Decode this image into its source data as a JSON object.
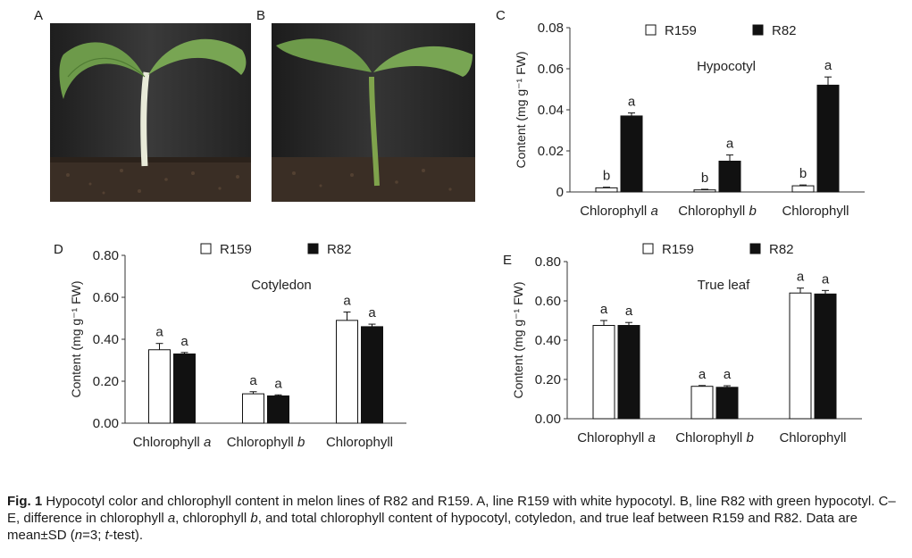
{
  "panels": {
    "a": "A",
    "b": "B",
    "c": "C",
    "d": "D",
    "e": "E"
  },
  "caption": {
    "fig_label": "Fig. 1",
    "text_1": "  Hypocotyl color and chlorophyll content in melon lines of R82 and R159.  A, line R159 with white hypocotyl.  B, line R82 with green hypocotyl.  C–E, difference in chlorophyll ",
    "italic_a": "a",
    "text_2": ", chlorophyll ",
    "italic_b": "b",
    "text_3": ", and total chlorophyll content of hypocotyl, cotyledon, and true leaf between R159 and R82.  Data are mean±SD  (",
    "italic_n": "n",
    "text_4": "=3; ",
    "italic_t": "t",
    "text_5": "-test)."
  },
  "colors": {
    "r159_fill": "#ffffff",
    "r82_fill": "#111111",
    "axis": "#333333",
    "photo_bg": "#2a2a2a",
    "leaf": "#6d9a4a",
    "stem_white": "#e8ead8",
    "stem_green": "#7fa34c",
    "soil": "#3a2e25"
  },
  "chart_data": [
    {
      "panel": "C",
      "type": "bar",
      "inner_label": "Hypocotyl",
      "ylabel": "Content (mg g⁻¹ FW)",
      "categories": [
        "Chlorophyll a",
        "Chlorophyll b",
        "Chlorophyll"
      ],
      "category_parts": [
        [
          "Chlorophyll ",
          "a"
        ],
        [
          "Chlorophyll ",
          "b"
        ],
        [
          "Chlorophyll",
          ""
        ]
      ],
      "ylim": [
        0,
        0.08
      ],
      "yticks": [
        0,
        0.02,
        0.04,
        0.06,
        0.08
      ],
      "ytick_labels": [
        "0",
        "0.02",
        "0.04",
        "0.06",
        "0.08"
      ],
      "legend": "top",
      "series": [
        {
          "name": "R159",
          "values": [
            0.002,
            0.001,
            0.003
          ],
          "errors": [
            0.0003,
            0.0003,
            0.0004
          ],
          "sig": [
            "b",
            "b",
            "b"
          ]
        },
        {
          "name": "R82",
          "values": [
            0.037,
            0.015,
            0.052
          ],
          "errors": [
            0.0015,
            0.003,
            0.004
          ],
          "sig": [
            "a",
            "a",
            "a"
          ]
        }
      ]
    },
    {
      "panel": "D",
      "type": "bar",
      "inner_label": "Cotyledon",
      "ylabel": "Content (mg g⁻¹ FW)",
      "categories": [
        "Chlorophyll a",
        "Chlorophyll b",
        "Chlorophyll"
      ],
      "category_parts": [
        [
          "Chlorophyll ",
          "a"
        ],
        [
          "Chlorophyll ",
          "b"
        ],
        [
          "Chlorophyll",
          ""
        ]
      ],
      "ylim": [
        0,
        0.8
      ],
      "yticks": [
        0,
        0.2,
        0.4,
        0.6,
        0.8
      ],
      "ytick_labels": [
        "0.00",
        "0.20",
        "0.40",
        "0.60",
        "0.80"
      ],
      "legend": "top",
      "series": [
        {
          "name": "R159",
          "values": [
            0.35,
            0.14,
            0.49
          ],
          "errors": [
            0.03,
            0.01,
            0.04
          ],
          "sig": [
            "a",
            "a",
            "a"
          ]
        },
        {
          "name": "R82",
          "values": [
            0.33,
            0.13,
            0.46
          ],
          "errors": [
            0.007,
            0.005,
            0.012
          ],
          "sig": [
            "a",
            "a",
            "a"
          ]
        }
      ]
    },
    {
      "panel": "E",
      "type": "bar",
      "inner_label": "True leaf",
      "ylabel": "Content (mg g⁻¹ FW)",
      "categories": [
        "Chlorophyll a",
        "Chlorophyll b",
        "Chlorophyll"
      ],
      "category_parts": [
        [
          "Chlorophyll ",
          "a"
        ],
        [
          "Chlorophyll ",
          "b"
        ],
        [
          "Chlorophyll",
          ""
        ]
      ],
      "ylim": [
        0,
        0.8
      ],
      "yticks": [
        0,
        0.2,
        0.4,
        0.6,
        0.8
      ],
      "ytick_labels": [
        "0.00",
        "0.20",
        "0.40",
        "0.60",
        "0.80"
      ],
      "legend": "top",
      "series": [
        {
          "name": "R159",
          "values": [
            0.475,
            0.165,
            0.64
          ],
          "errors": [
            0.025,
            0.004,
            0.025
          ],
          "sig": [
            "a",
            "a",
            "a"
          ]
        },
        {
          "name": "R82",
          "values": [
            0.475,
            0.16,
            0.635
          ],
          "errors": [
            0.015,
            0.008,
            0.018
          ],
          "sig": [
            "a",
            "a",
            "a"
          ]
        }
      ]
    }
  ]
}
